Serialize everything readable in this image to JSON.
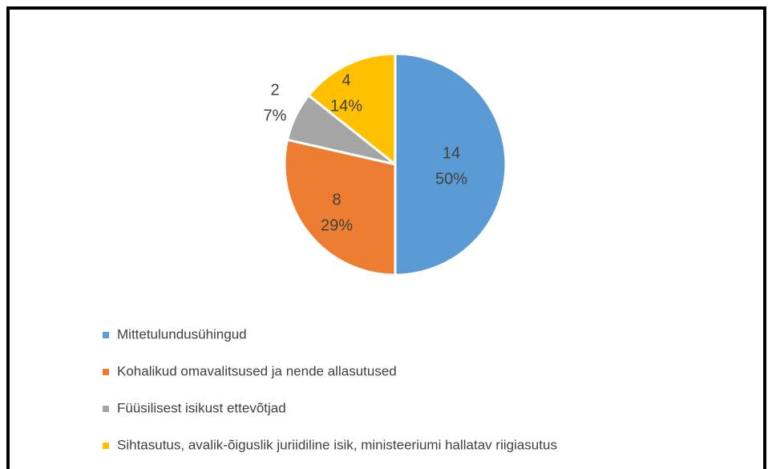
{
  "chart_data": {
    "type": "pie",
    "categories": [
      "Mittetulundusühingud",
      "Kohalikud omavalitsused ja nende allasutused",
      "Füüsilisest isikust ettevõtjad",
      "Sihtasutus, avalik-õiguslik juriidiline isik, ministeeriumi hallatav riigiasutus"
    ],
    "values": [
      14,
      8,
      2,
      4
    ],
    "percent_labels": [
      "50%",
      "29%",
      "7%",
      "14%"
    ],
    "colors": [
      "#5b9bd5",
      "#ed7d31",
      "#a5a5a5",
      "#ffc000"
    ],
    "legend": "bottom-left"
  }
}
